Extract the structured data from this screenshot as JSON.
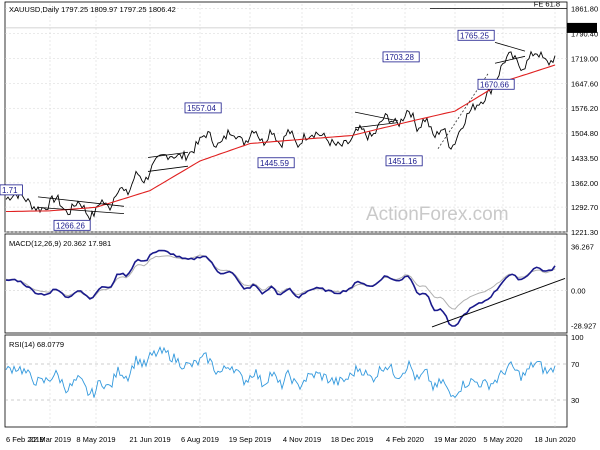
{
  "header": "XAUUSD,Daily  1797.25 1809.97 1797.25 1806.42",
  "watermark": "ActionForex.com",
  "colors": {
    "price": "#000000",
    "ma": "#e02020",
    "macd": "#1a1a8c",
    "signal": "#b0b0b0",
    "rsi": "#3399dd",
    "annot": "#1a1a8c",
    "grid": "#d4d4d4",
    "trend": "#000000"
  },
  "chart_data": [
    {
      "type": "line",
      "title": "XAUUSD,Daily",
      "ohlc": {
        "open": 1797.25,
        "high": 1809.97,
        "low": 1797.25,
        "close": 1806.42
      },
      "x_dates": [
        "6 Feb 2019",
        "22 Mar 2019",
        "8 May 2019",
        "21 Jun 2019",
        "6 Aug 2019",
        "19 Sep 2019",
        "4 Nov 2019",
        "18 Dec 2019",
        "4 Feb 2020",
        "19 Mar 2020",
        "5 May 2020",
        "18 Jun 2020"
      ],
      "y_ticks": [
        1221.3,
        1292.7,
        1362.0,
        1433.5,
        1504.8,
        1576.2,
        1647.6,
        1719.0,
        1790.4,
        1861.8
      ],
      "ylim": [
        1221.3,
        1875
      ],
      "last_price_label": "1806.42",
      "fib_label": "FE 61.8",
      "fib_level": 1861.8,
      "annotations": [
        {
          "label": "1.71",
          "date": "6 Feb 2019",
          "price": 1322
        },
        {
          "label": "1266.26",
          "date": "22 Mar 2019",
          "price": 1266.26
        },
        {
          "label": "1557.04",
          "date": "6 Aug 2019",
          "price": 1557.04
        },
        {
          "label": "1445.59",
          "date": "19 Sep 2019",
          "price": 1445.59
        },
        {
          "label": "1703.28",
          "date": "4 Feb 2020",
          "price": 1703.28
        },
        {
          "label": "1451.16",
          "date": "19 Mar 2020",
          "price": 1451.16
        },
        {
          "label": "1765.25",
          "date": "5 May 2020",
          "price": 1765.25
        },
        {
          "label": "1670.66",
          "date": "5 May 2020",
          "price": 1670.66
        }
      ],
      "series": [
        {
          "name": "price",
          "points": [
            [
              "6 Feb 2019",
              1315
            ],
            [
              "22 Mar 2019",
              1303
            ],
            [
              "8 May 2019",
              1282
            ],
            [
              "21 Jun 2019",
              1398
            ],
            [
              "6 Aug 2019",
              1482
            ],
            [
              "19 Sep 2019",
              1500
            ],
            [
              "4 Nov 2019",
              1488
            ],
            [
              "18 Dec 2019",
              1485
            ],
            [
              "4 Feb 2020",
              1560
            ],
            [
              "19 Mar 2020",
              1480
            ],
            [
              "5 May 2020",
              1705
            ],
            [
              "18 Jun 2020",
              1727
            ]
          ]
        },
        {
          "name": "ma",
          "points": [
            [
              "6 Feb 2019",
              1280
            ],
            [
              "22 Mar 2019",
              1282
            ],
            [
              "8 May 2019",
              1292
            ],
            [
              "21 Jun 2019",
              1340
            ],
            [
              "6 Aug 2019",
              1425
            ],
            [
              "19 Sep 2019",
              1475
            ],
            [
              "4 Nov 2019",
              1487
            ],
            [
              "18 Dec 2019",
              1498
            ],
            [
              "4 Feb 2020",
              1535
            ],
            [
              "19 Mar 2020",
              1568
            ],
            [
              "5 May 2020",
              1652
            ],
            [
              "18 Jun 2020",
              1700
            ]
          ]
        }
      ]
    },
    {
      "type": "line",
      "title": "MACD(12,26,9) 20.362 17.981",
      "y_ticks": [
        -28.927,
        0.0,
        36.267
      ],
      "y_tick_labels": [
        "-28.927",
        "0.00",
        "36.267"
      ],
      "ylim": [
        -35,
        45
      ],
      "series": [
        {
          "name": "macd",
          "points": [
            [
              "6 Feb 2019",
              8
            ],
            [
              "22 Mar 2019",
              -2
            ],
            [
              "8 May 2019",
              -3
            ],
            [
              "21 Jun 2019",
              30
            ],
            [
              "6 Aug 2019",
              28
            ],
            [
              "19 Sep 2019",
              2
            ],
            [
              "4 Nov 2019",
              -3
            ],
            [
              "18 Dec 2019",
              3
            ],
            [
              "4 Feb 2020",
              12
            ],
            [
              "19 Mar 2020",
              -30
            ],
            [
              "5 May 2020",
              8
            ],
            [
              "18 Jun 2020",
              20.362
            ]
          ]
        },
        {
          "name": "signal",
          "points": [
            [
              "6 Feb 2019",
              9
            ],
            [
              "22 Mar 2019",
              -1
            ],
            [
              "8 May 2019",
              -4
            ],
            [
              "21 Jun 2019",
              26
            ],
            [
              "6 Aug 2019",
              29
            ],
            [
              "19 Sep 2019",
              4
            ],
            [
              "4 Nov 2019",
              -2
            ],
            [
              "18 Dec 2019",
              2
            ],
            [
              "4 Feb 2020",
              13
            ],
            [
              "19 Mar 2020",
              -15
            ],
            [
              "5 May 2020",
              10
            ],
            [
              "18 Jun 2020",
              17.981
            ]
          ]
        }
      ]
    },
    {
      "type": "line",
      "title": "RSI(14) 68.0779",
      "y_ticks": [
        30,
        70,
        100
      ],
      "y_tick_labels": [
        "30",
        "70",
        "100"
      ],
      "ylim": [
        0,
        100
      ],
      "series": [
        {
          "name": "rsi",
          "points": [
            [
              "6 Feb 2019",
              62
            ],
            [
              "22 Mar 2019",
              54
            ],
            [
              "8 May 2019",
              41
            ],
            [
              "21 Jun 2019",
              78
            ],
            [
              "6 Aug 2019",
              73
            ],
            [
              "19 Sep 2019",
              56
            ],
            [
              "4 Nov 2019",
              50
            ],
            [
              "18 Dec 2019",
              58
            ],
            [
              "4 Feb 2020",
              65
            ],
            [
              "19 Mar 2020",
              38
            ],
            [
              "5 May 2020",
              60
            ],
            [
              "18 Jun 2020",
              68.08
            ]
          ]
        }
      ]
    }
  ]
}
